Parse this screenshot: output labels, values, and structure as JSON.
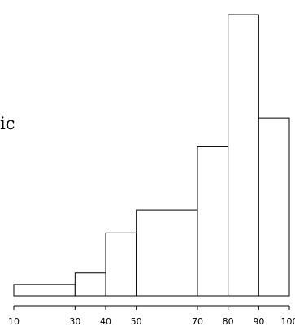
{
  "side_text": "ic",
  "chart_data": {
    "type": "bar",
    "variant": "histogram",
    "bins": [
      {
        "from": 10,
        "to": 30,
        "height": 0.04
      },
      {
        "from": 30,
        "to": 40,
        "height": 0.08
      },
      {
        "from": 40,
        "to": 50,
        "height": 0.22
      },
      {
        "from": 50,
        "to": 70,
        "height": 0.3
      },
      {
        "from": 70,
        "to": 80,
        "height": 0.52
      },
      {
        "from": 80,
        "to": 90,
        "height": 0.98
      },
      {
        "from": 90,
        "to": 100,
        "height": 0.62
      }
    ],
    "xticks": [
      10,
      30,
      40,
      50,
      70,
      80,
      90,
      100
    ],
    "tick_labels": [
      "10",
      "30",
      "40",
      "50",
      "70",
      "80",
      "90",
      "100"
    ],
    "xlim": [
      10,
      100
    ],
    "ylim": [
      0,
      1
    ],
    "title": "",
    "xlabel": "",
    "ylabel": "",
    "grid": false,
    "colors": {
      "fill": "#ffffff",
      "stroke": "#000000"
    }
  }
}
